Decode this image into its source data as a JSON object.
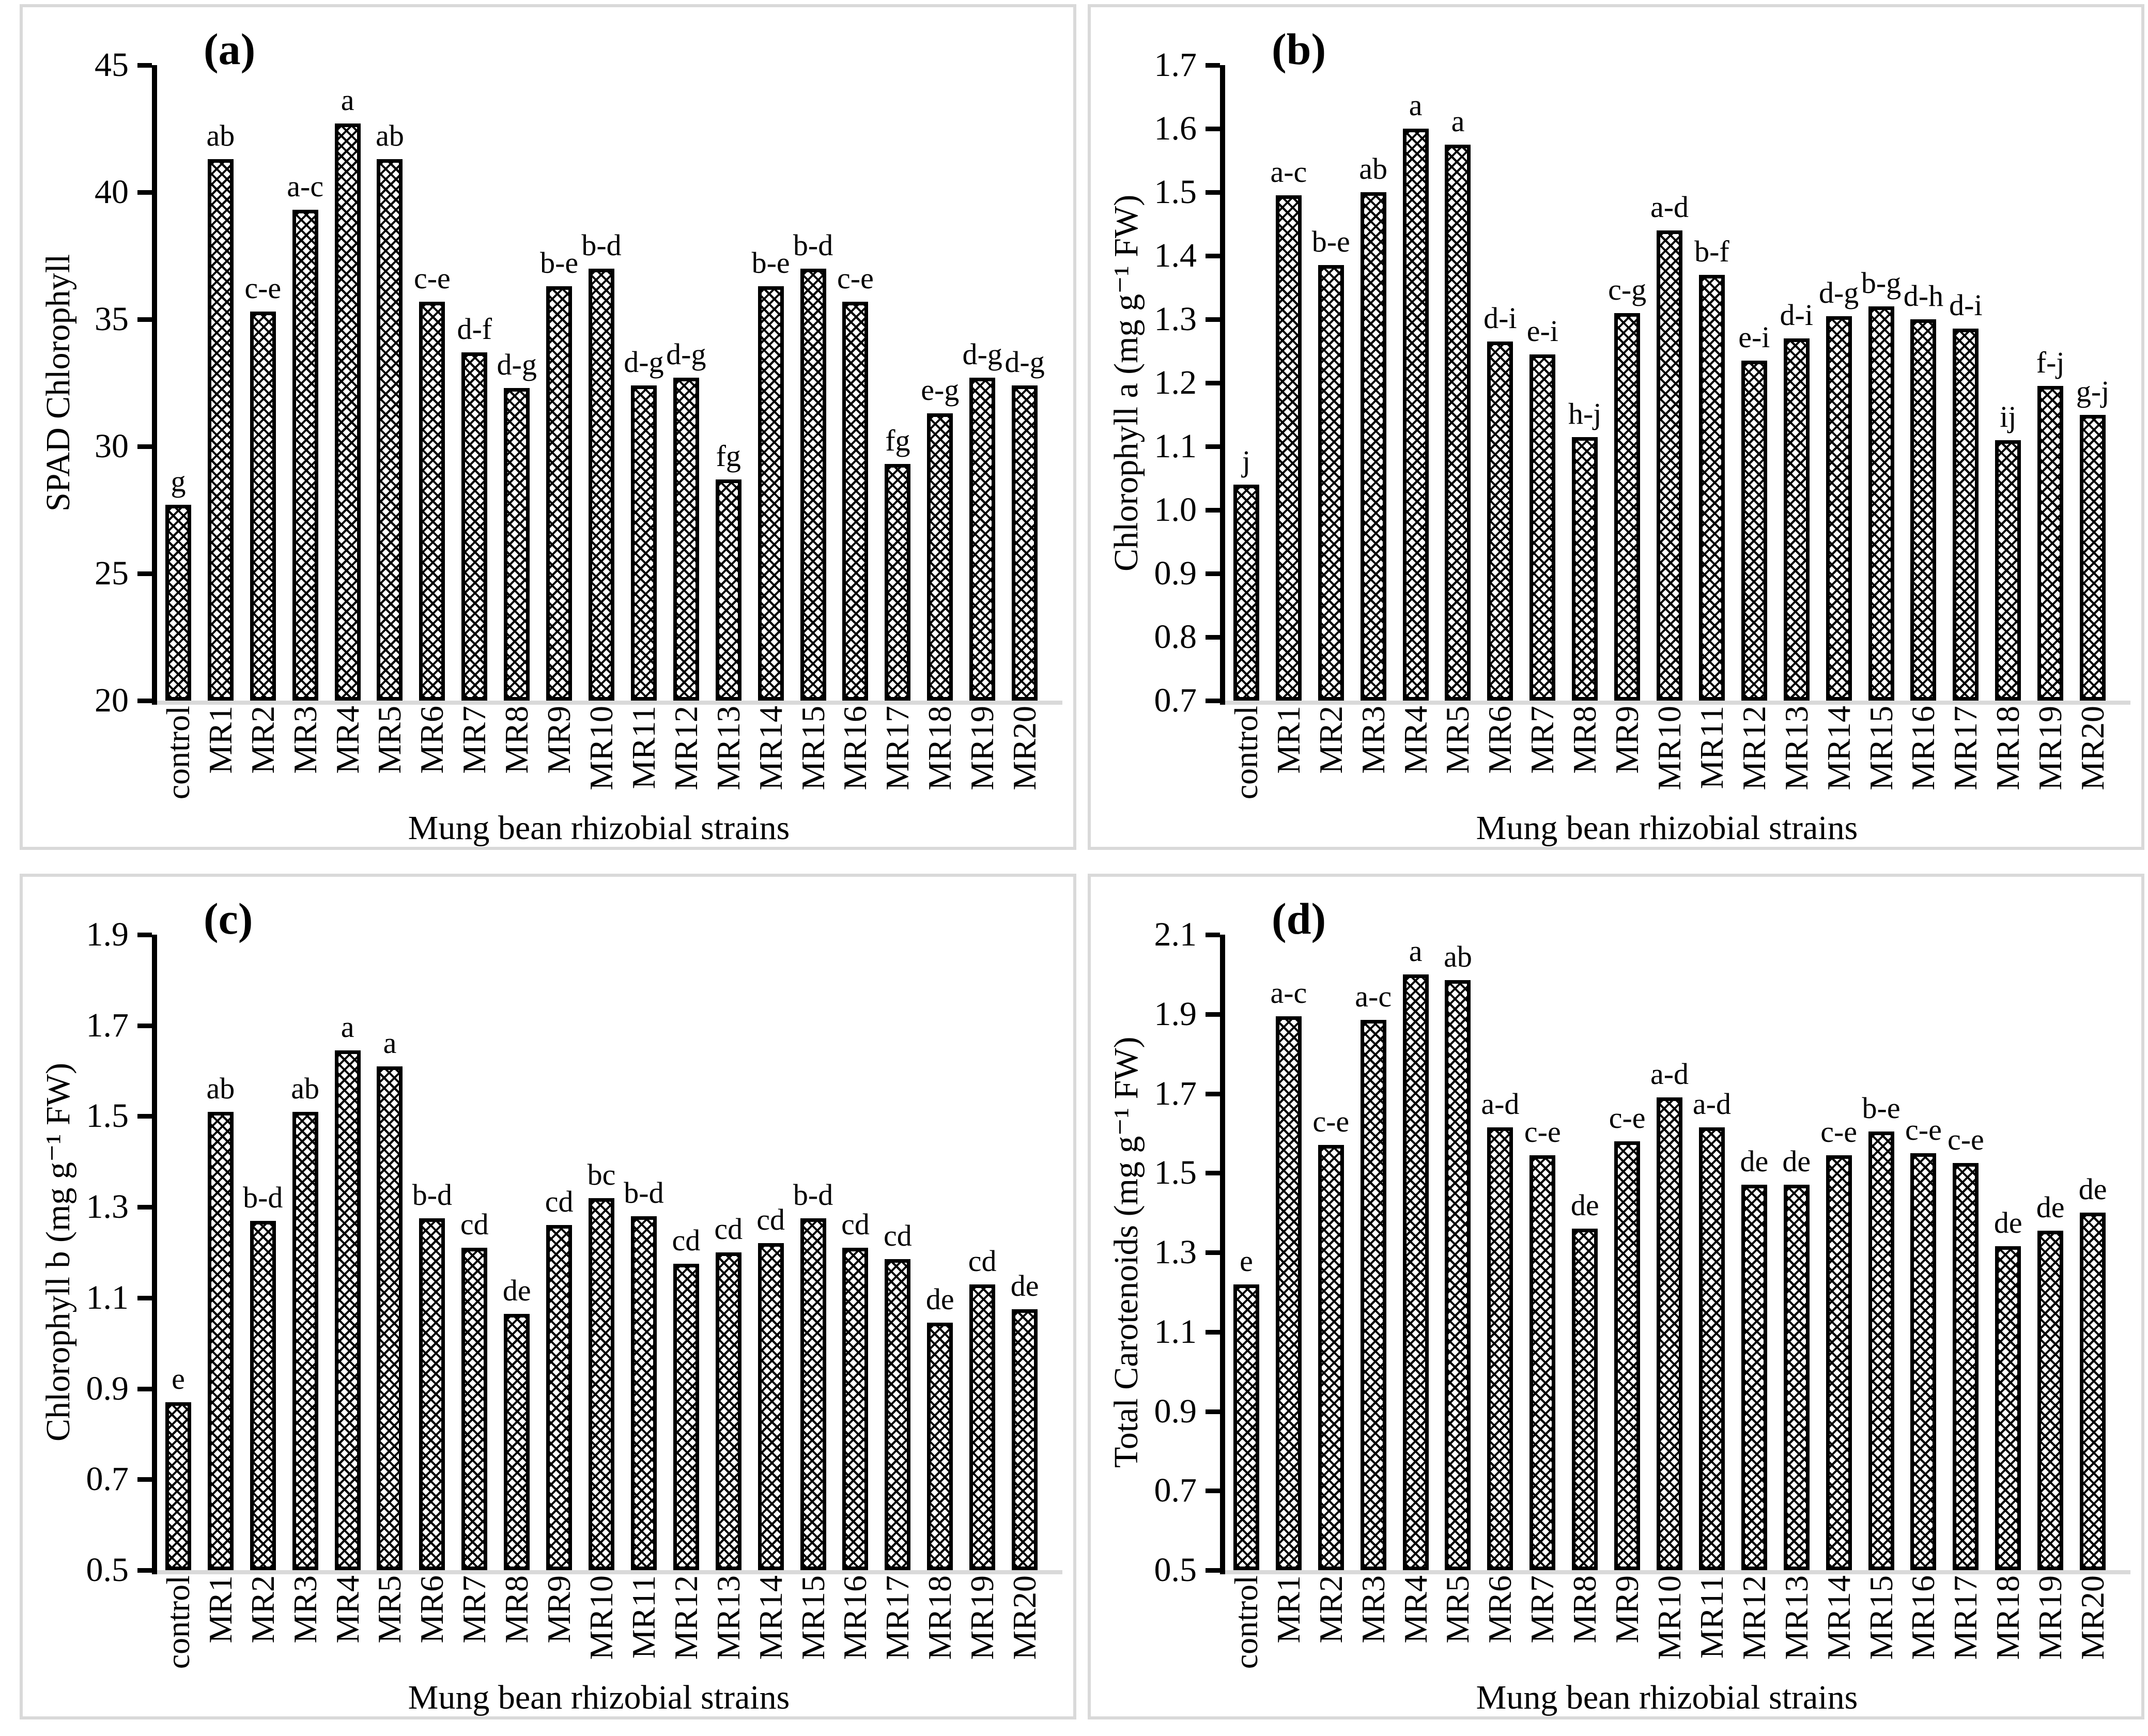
{
  "figure": {
    "x_axis_title": "Mung bean rhizobial strains",
    "colors": {
      "background": "#ffffff",
      "bar_fill": "#ffffff",
      "bar_hatch": "#000000",
      "axis_line": "#000000",
      "category_axis_line": "#d9d9d9",
      "panel_border": "#d9d9d9",
      "text": "#000000"
    }
  },
  "chart_data": [
    {
      "type": "bar",
      "panel_tag": "(a)",
      "ylabel": "SPAD Chlorophyll",
      "xlabel": "Mung bean rhizobial strains",
      "ylim": [
        20,
        45
      ],
      "ytick_step": 5,
      "ytick_decimals": 0,
      "grid": false,
      "legend": "none",
      "categories": [
        "control",
        "MR1",
        "MR2",
        "MR3",
        "MR4",
        "MR5",
        "MR6",
        "MR7",
        "MR8",
        "MR9",
        "MR10",
        "MR11",
        "MR12",
        "MR13",
        "MR14",
        "MR15",
        "MR16",
        "MR17",
        "MR18",
        "MR19",
        "MR20"
      ],
      "values": [
        27.7,
        41.3,
        35.3,
        39.3,
        42.7,
        41.3,
        35.7,
        33.7,
        32.3,
        36.3,
        37.0,
        32.4,
        32.7,
        28.7,
        36.3,
        37.0,
        35.7,
        29.3,
        31.3,
        32.7,
        32.4
      ],
      "sig_letters": [
        "g",
        "ab",
        "c-e",
        "a-c",
        "a",
        "ab",
        "c-e",
        "d-f",
        "d-g",
        "b-e",
        "b-d",
        "d-g",
        "d-g",
        "fg",
        "b-e",
        "b-d",
        "c-e",
        "fg",
        "e-g",
        "d-g",
        "d-g"
      ]
    },
    {
      "type": "bar",
      "panel_tag": "(b)",
      "ylabel": "Chlorophyll a (mg g⁻¹ FW)",
      "xlabel": "Mung bean rhizobial strains",
      "ylim": [
        0.7,
        1.7
      ],
      "ytick_step": 0.1,
      "ytick_decimals": 1,
      "grid": false,
      "legend": "none",
      "categories": [
        "control",
        "MR1",
        "MR2",
        "MR3",
        "MR4",
        "MR5",
        "MR6",
        "MR7",
        "MR8",
        "MR9",
        "MR10",
        "MR11",
        "MR12",
        "MR13",
        "MR14",
        "MR15",
        "MR16",
        "MR17",
        "MR18",
        "MR19",
        "MR20"
      ],
      "values": [
        1.04,
        1.495,
        1.385,
        1.5,
        1.6,
        1.575,
        1.265,
        1.245,
        1.115,
        1.31,
        1.44,
        1.37,
        1.235,
        1.27,
        1.305,
        1.32,
        1.3,
        1.285,
        1.11,
        1.195,
        1.15
      ],
      "sig_letters": [
        "j",
        "a-c",
        "b-e",
        "ab",
        "a",
        "a",
        "d-i",
        "e-i",
        "h-j",
        "c-g",
        "a-d",
        "b-f",
        "e-i",
        "d-i",
        "d-g",
        "b-g",
        "d-h",
        "d-i",
        "ij",
        "f-j",
        "g-j"
      ]
    },
    {
      "type": "bar",
      "panel_tag": "(c)",
      "ylabel": "Chlorophyll b (mg g⁻¹ FW)",
      "xlabel": "Mung bean rhizobial strains",
      "ylim": [
        0.5,
        1.9
      ],
      "ytick_step": 0.2,
      "ytick_decimals": 1,
      "grid": false,
      "legend": "none",
      "categories": [
        "control",
        "MR1",
        "MR2",
        "MR3",
        "MR4",
        "MR5",
        "MR6",
        "MR7",
        "MR8",
        "MR9",
        "MR10",
        "MR11",
        "MR12",
        "MR13",
        "MR14",
        "MR15",
        "MR16",
        "MR17",
        "MR18",
        "MR19",
        "MR20"
      ],
      "values": [
        0.87,
        1.51,
        1.27,
        1.51,
        1.645,
        1.61,
        1.275,
        1.21,
        1.065,
        1.26,
        1.32,
        1.28,
        1.175,
        1.2,
        1.22,
        1.275,
        1.21,
        1.185,
        1.045,
        1.13,
        1.075
      ],
      "sig_letters": [
        "e",
        "ab",
        "b-d",
        "ab",
        "a",
        "a",
        "b-d",
        "cd",
        "de",
        "cd",
        "bc",
        "b-d",
        "cd",
        "cd",
        "cd",
        "b-d",
        "cd",
        "cd",
        "de",
        "cd",
        "de"
      ]
    },
    {
      "type": "bar",
      "panel_tag": "(d)",
      "ylabel": "Total Carotenoids (mg g⁻¹ FW)",
      "xlabel": "Mung bean rhizobial strains",
      "ylim": [
        0.5,
        2.1
      ],
      "ytick_step": 0.2,
      "ytick_decimals": 1,
      "grid": false,
      "legend": "none",
      "categories": [
        "control",
        "MR1",
        "MR2",
        "MR3",
        "MR4",
        "MR5",
        "MR6",
        "MR7",
        "MR8",
        "MR9",
        "MR10",
        "MR11",
        "MR12",
        "MR13",
        "MR14",
        "MR15",
        "MR16",
        "MR17",
        "MR18",
        "MR19",
        "MR20"
      ],
      "values": [
        1.22,
        1.895,
        1.57,
        1.885,
        2.0,
        1.985,
        1.615,
        1.545,
        1.36,
        1.58,
        1.69,
        1.615,
        1.47,
        1.47,
        1.545,
        1.605,
        1.55,
        1.525,
        1.315,
        1.355,
        1.4
      ],
      "sig_letters": [
        "e",
        "a-c",
        "c-e",
        "a-c",
        "a",
        "ab",
        "a-d",
        "c-e",
        "de",
        "c-e",
        "a-d",
        "a-d",
        "de",
        "de",
        "c-e",
        "b-e",
        "c-e",
        "c-e",
        "de",
        "de",
        "de"
      ]
    }
  ]
}
